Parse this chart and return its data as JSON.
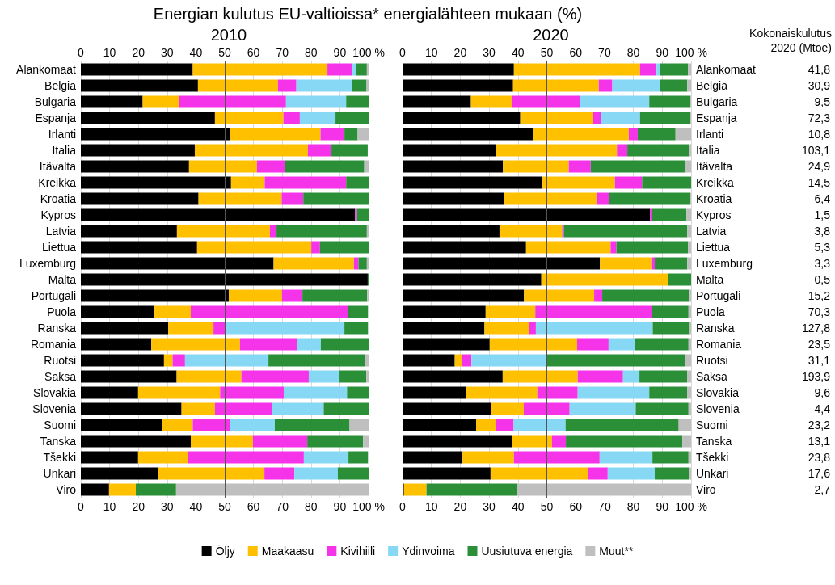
{
  "chart_data": [
    {
      "type": "bar",
      "orientation": "horizontal",
      "stacked": true,
      "title": "Energian kulutus EU-valtioissa* energialähteen mukaan (%)",
      "subtitle": "2010",
      "categories": [
        "Alankomaat",
        "Belgia",
        "Bulgaria",
        "Espanja",
        "Irlanti",
        "Italia",
        "Itävalta",
        "Kreikka",
        "Kroatia",
        "Kypros",
        "Latvia",
        "Liettua",
        "Luxemburg",
        "Malta",
        "Portugali",
        "Puola",
        "Ranska",
        "Romania",
        "Ruotsi",
        "Saksa",
        "Slovakia",
        "Slovenia",
        "Suomi",
        "Tanska",
        "Tšekki",
        "Unkari",
        "Viro"
      ],
      "xlim": [
        0,
        100
      ],
      "xticks": [
        0,
        10,
        20,
        30,
        40,
        50,
        60,
        70,
        80,
        90,
        {
          "value": 100,
          "label": "100 %"
        }
      ],
      "x2lim": [
        0,
        100
      ],
      "x2ticks": [
        0,
        10,
        20,
        30,
        40,
        50,
        60,
        70,
        80,
        90,
        {
          "value": 100,
          "label": "100 %"
        }
      ],
      "grid": "x",
      "legend": "bottom",
      "ref_lines": [
        {
          "axis": "x",
          "value": 50,
          "color": "#555555"
        }
      ],
      "series": [
        {
          "name": "Öljy",
          "color": "#000000",
          "values": [
            38.9,
            40.7,
            21.5,
            46.6,
            51.8,
            39.6,
            37.6,
            52.2,
            40.9,
            95.3,
            33.4,
            40.4,
            67.0,
            99.7,
            51.4,
            25.6,
            30.4,
            24.5,
            28.9,
            33.3,
            19.9,
            35.0,
            28.1,
            38.2,
            19.9,
            26.9,
            9.8
          ]
        },
        {
          "name": "Maakaasu",
          "color": "#ffc000",
          "values": [
            46.8,
            27.8,
            12.5,
            23.8,
            31.5,
            39.3,
            23.6,
            11.7,
            28.9,
            0,
            32.3,
            39.7,
            27.9,
            0,
            18.5,
            12.6,
            15.7,
            30.8,
            3.0,
            22.5,
            28.5,
            11.6,
            10.8,
            21.6,
            17.2,
            36.9,
            9.3
          ]
        },
        {
          "name": "Kivihiili",
          "color": "#f534ea",
          "values": [
            8.7,
            6.4,
            37.3,
            5.7,
            8.3,
            8.2,
            9.8,
            28.3,
            7.5,
            0.7,
            2.3,
            3.0,
            1.6,
            0,
            7.1,
            54.5,
            4.4,
            19.7,
            4.3,
            23.4,
            22.1,
            19.7,
            12.9,
            18.9,
            40.4,
            10.4,
            0
          ]
        },
        {
          "name": "Ydinvoima",
          "color": "#87d8f5",
          "values": [
            1.1,
            19.2,
            20.9,
            12.4,
            0,
            0,
            0,
            0,
            0,
            0,
            0,
            0,
            0,
            0,
            0,
            0,
            41.1,
            8.4,
            29.0,
            10.7,
            22.0,
            18.1,
            15.6,
            0,
            15.5,
            15.1,
            0
          ]
        },
        {
          "name": "Uusiutuva energia",
          "color": "#2b8f38",
          "values": [
            3.9,
            5.2,
            7.8,
            11.5,
            4.6,
            12.6,
            27.5,
            7.8,
            22.7,
            4.0,
            31.4,
            16.9,
            2.9,
            0.3,
            22.5,
            7.1,
            8.2,
            16.6,
            33.4,
            9.3,
            7.5,
            15.6,
            26.0,
            19.4,
            6.8,
            10.7,
            14.0
          ]
        },
        {
          "name": "Muut**",
          "color": "#bfbfbf",
          "values": [
            0.6,
            0.7,
            0,
            0,
            3.8,
            null,
            1.5,
            0,
            0,
            0,
            0.6,
            0,
            0.6,
            0,
            0.5,
            null,
            null,
            0,
            1.4,
            0.8,
            0,
            0,
            6.6,
            1.9,
            null,
            0,
            66.9
          ]
        }
      ]
    },
    {
      "type": "bar",
      "orientation": "horizontal",
      "stacked": true,
      "title": "2020",
      "categories": [
        "Alankomaat",
        "Belgia",
        "Bulgaria",
        "Espanja",
        "Irlanti",
        "Italia",
        "Itävalta",
        "Kreikka",
        "Kroatia",
        "Kypros",
        "Latvia",
        "Liettua",
        "Luxemburg",
        "Malta",
        "Portugali",
        "Puola",
        "Ranska",
        "Romania",
        "Ruotsi",
        "Saksa",
        "Slovakia",
        "Slovenia",
        "Suomi",
        "Tanska",
        "Tšekki",
        "Unkari",
        "Viro"
      ],
      "xlim": [
        0,
        100
      ],
      "xticks": [
        0,
        10,
        20,
        30,
        40,
        50,
        60,
        70,
        80,
        90,
        {
          "value": 100,
          "label": "100 %"
        }
      ],
      "x2lim": [
        0,
        100
      ],
      "x2ticks": [
        0,
        10,
        20,
        30,
        40,
        50,
        60,
        70,
        80,
        90,
        {
          "value": 100,
          "label": "100 %"
        }
      ],
      "grid": "x",
      "ref_lines": [
        {
          "axis": "x",
          "value": 50,
          "color": "#555555"
        }
      ],
      "series": [
        {
          "color": "#000000",
          "values": [
            38.6,
            38.3,
            23.7,
            40.8,
            45.1,
            32.3,
            34.8,
            48.5,
            35.2,
            85.8,
            33.6,
            42.8,
            68.4,
            48.1,
            42.1,
            28.8,
            28.4,
            30.2,
            18.1,
            34.7,
            21.9,
            30.7,
            25.5,
            38.0,
            20.8,
            30.5,
            0.5
          ]
        },
        {
          "color": "#ffc000",
          "values": [
            43.7,
            29.7,
            14.1,
            25.3,
            33.3,
            42.0,
            22.8,
            25.1,
            32.0,
            0,
            21.7,
            29.3,
            17.8,
            44.0,
            24.3,
            17.2,
            15.4,
            30.3,
            2.6,
            26.0,
            24.8,
            11.3,
            6.9,
            13.8,
            17.8,
            33.9,
            7.8
          ]
        },
        {
          "color": "#f534ea",
          "values": [
            5.7,
            4.7,
            23.7,
            2.8,
            3.1,
            3.6,
            7.6,
            9.4,
            4.5,
            0.5,
            0.6,
            2.0,
            1.2,
            0,
            2.8,
            40.3,
            2.4,
            10.9,
            3.2,
            15.7,
            14.0,
            15.9,
            6.1,
            4.8,
            29.7,
            6.7,
            0
          ]
        },
        {
          "color": "#87d8f5",
          "values": [
            1.3,
            16.4,
            24.0,
            13.4,
            0,
            0,
            0,
            0,
            0,
            0,
            0,
            0,
            0,
            0,
            0,
            0,
            40.5,
            9.0,
            25.7,
            5.7,
            24.8,
            22.9,
            18.0,
            0,
            18.3,
            16.3,
            0
          ]
        },
        {
          "color": "#2b8f38",
          "values": [
            9.6,
            9.6,
            14.0,
            17.2,
            13.1,
            21.3,
            32.7,
            17.0,
            27.8,
            12.1,
            42.8,
            24.8,
            11.3,
            7.9,
            30.0,
            12.8,
            12.6,
            18.7,
            48.2,
            16.5,
            13.1,
            18.3,
            39.2,
            40.4,
            12.5,
            11.8,
            31.4
          ]
        },
        {
          "color": "#bfbfbf",
          "values": [
            1.1,
            1.3,
            0.5,
            0.5,
            5.4,
            0.8,
            2.1,
            0,
            0.5,
            1.6,
            1.3,
            1.1,
            1.3,
            0,
            0.8,
            0.9,
            0.7,
            0.9,
            2.2,
            1.4,
            1.4,
            0.9,
            4.3,
            3.0,
            0.9,
            0.8,
            60.3
          ]
        }
      ]
    },
    {
      "type": "other",
      "title": "Kokonaiskulutus 2020 (Mtoe)",
      "categories": [
        null,
        null,
        null,
        null,
        null,
        null,
        null,
        null,
        null,
        null,
        null,
        null,
        null,
        null,
        null,
        null,
        null,
        null,
        null,
        null,
        null,
        null,
        null,
        null,
        null,
        null,
        null
      ],
      "value_labels": [
        "41,8",
        "30,9",
        "9,5",
        "72,3",
        "10,8",
        "103,1",
        "24,9",
        "14,5",
        "6,4",
        "1,5",
        "3,8",
        "5,3",
        "3,3",
        "0,5",
        "15,2",
        "70,3",
        "127,8",
        "23,5",
        "31,1",
        "193,9",
        "9,6",
        "4,4",
        "23,2",
        "13,1",
        "23,8",
        "17,6",
        "2,7"
      ]
    }
  ]
}
